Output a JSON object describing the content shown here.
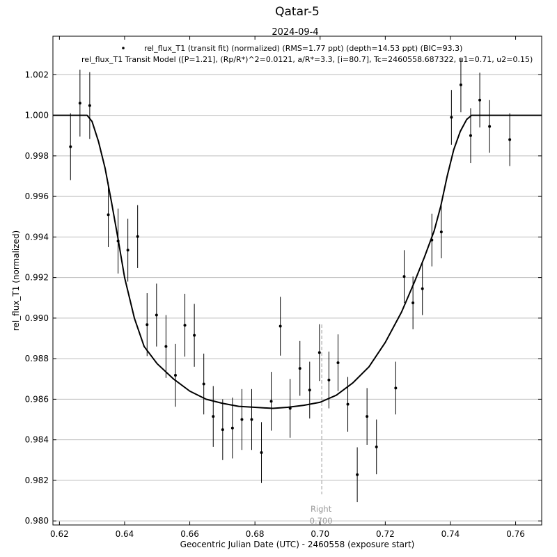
{
  "chart_data": {
    "type": "scatter",
    "title": "Qatar-5",
    "subtitle": "2024-09-4",
    "xlabel": "Geocentric Julian Date (UTC) - 2460558 (exposure start)",
    "ylabel": "rel_flux_T1 (normalized)",
    "xlim": [
      0.618,
      0.768
    ],
    "ylim": [
      0.9798,
      1.0039
    ],
    "xticks": [
      0.62,
      0.64,
      0.66,
      0.68,
      0.7,
      0.72,
      0.74,
      0.76
    ],
    "xtick_labels": [
      "0.62",
      "0.64",
      "0.66",
      "0.68",
      "0.70",
      "0.72",
      "0.74",
      "0.76"
    ],
    "yticks": [
      0.98,
      0.982,
      0.984,
      0.986,
      0.988,
      0.99,
      0.992,
      0.994,
      0.996,
      0.998,
      1.0,
      1.002
    ],
    "ytick_labels": [
      "0.980",
      "0.982",
      "0.984",
      "0.986",
      "0.988",
      "0.990",
      "0.992",
      "0.994",
      "0.996",
      "0.998",
      "1.000",
      "1.002"
    ],
    "grid": "horizontal",
    "legend_placement": "top-center",
    "legend": [
      {
        "marker": "dot",
        "label": "rel_flux_T1 (transit fit) (normalized) (RMS=1.77 ppt) (depth=14.53 ppt) (BIC=93.3)"
      },
      {
        "marker": "none",
        "label": "rel_flux_T1 Transit Model ([P=1.21], (Rp/R*)^2=0.0121, a/R*=3.3, [i=80.7], Tc=2460558.687322, u1=0.71, u2=0.15)"
      }
    ],
    "annotation": {
      "label": "Right",
      "value_text": "0.700",
      "x": 0.7005
    },
    "series": [
      {
        "kind": "points_with_errorbars",
        "x": [
          0.6234,
          0.6263,
          0.6293,
          0.635,
          0.638,
          0.641,
          0.644,
          0.6469,
          0.6498,
          0.6527,
          0.6556,
          0.6585,
          0.6614,
          0.6643,
          0.6672,
          0.6701,
          0.6731,
          0.676,
          0.679,
          0.682,
          0.685,
          0.6878,
          0.6908,
          0.6938,
          0.6968,
          0.6998,
          0.7027,
          0.7055,
          0.7085,
          0.7114,
          0.7144,
          0.7173,
          0.7232,
          0.7258,
          0.7285,
          0.7314,
          0.7343,
          0.7372,
          0.7403,
          0.7432,
          0.7462,
          0.749,
          0.752,
          0.7582
        ],
        "y": [
          0.99845,
          1.0006,
          1.00048,
          0.9951,
          0.9938,
          0.99335,
          0.99402,
          0.98968,
          0.99015,
          0.9886,
          0.98718,
          0.98965,
          0.98915,
          0.98675,
          0.98515,
          0.9845,
          0.98458,
          0.985,
          0.985,
          0.98337,
          0.9859,
          0.9896,
          0.98555,
          0.98752,
          0.98645,
          0.9883,
          0.98695,
          0.9878,
          0.98575,
          0.98228,
          0.98515,
          0.98365,
          0.98655,
          0.99205,
          0.99075,
          0.99145,
          0.99385,
          0.99425,
          0.9999,
          1.0015,
          0.999,
          1.00075,
          0.99945,
          0.9988
        ],
        "yerr": [
          0.00165,
          0.00165,
          0.00165,
          0.0016,
          0.0016,
          0.00155,
          0.00155,
          0.00155,
          0.00155,
          0.00155,
          0.00155,
          0.00155,
          0.00155,
          0.0015,
          0.0015,
          0.0015,
          0.0015,
          0.0015,
          0.0015,
          0.0015,
          0.00145,
          0.00145,
          0.00145,
          0.00135,
          0.0014,
          0.0014,
          0.0014,
          0.0014,
          0.00135,
          0.00135,
          0.0014,
          0.00135,
          0.0013,
          0.0013,
          0.0013,
          0.0013,
          0.0013,
          0.0013,
          0.00135,
          0.00135,
          0.00135,
          0.00135,
          0.0013,
          0.0013
        ]
      },
      {
        "kind": "model_line",
        "x": [
          0.618,
          0.6285,
          0.63,
          0.632,
          0.634,
          0.636,
          0.638,
          0.64,
          0.643,
          0.646,
          0.65,
          0.655,
          0.66,
          0.665,
          0.67,
          0.675,
          0.68,
          0.6855,
          0.69,
          0.695,
          0.7,
          0.705,
          0.71,
          0.715,
          0.72,
          0.725,
          0.729,
          0.732,
          0.735,
          0.737,
          0.739,
          0.741,
          0.743,
          0.745,
          0.7465,
          0.768
        ],
        "y": [
          1.0,
          1.0,
          0.9997,
          0.9987,
          0.9974,
          0.9957,
          0.9939,
          0.992,
          0.99,
          0.9886,
          0.98775,
          0.987,
          0.9864,
          0.986,
          0.9858,
          0.98565,
          0.9856,
          0.98555,
          0.9856,
          0.9857,
          0.98585,
          0.9862,
          0.9868,
          0.9876,
          0.9888,
          0.9903,
          0.9918,
          0.993,
          0.9943,
          0.9955,
          0.997,
          0.9983,
          0.9992,
          0.9998,
          1.0,
          1.0
        ]
      }
    ]
  }
}
